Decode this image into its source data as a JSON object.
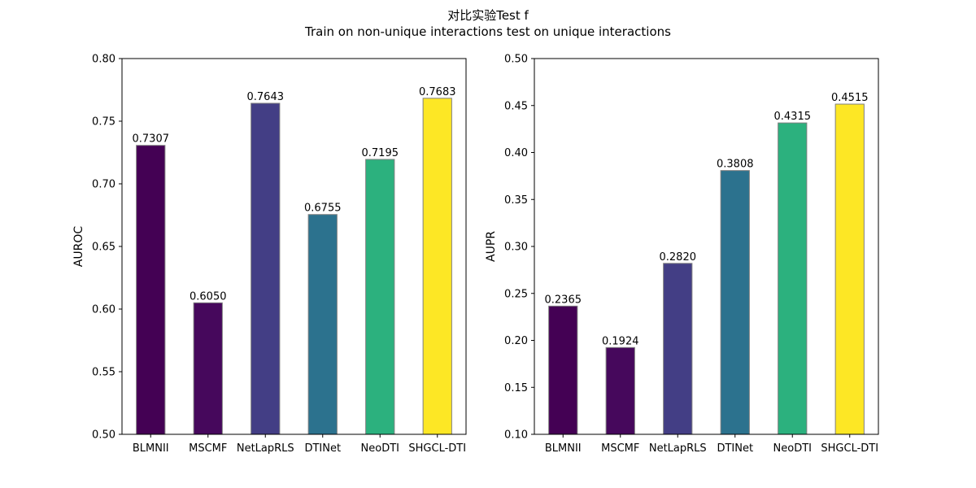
{
  "figure": {
    "title": "对比实验Test f",
    "subtitle": "Train on non-unique interactions test on unique interactions"
  },
  "colors": {
    "bars": [
      "#440154",
      "#46085c",
      "#433e85",
      "#2c728e",
      "#2cb17e",
      "#fde725"
    ],
    "bar_edge": "#808080",
    "axes": "#000000"
  },
  "chart_data": [
    {
      "type": "bar",
      "categories": [
        "BLMNII",
        "MSCMF",
        "NetLapRLS",
        "DTINet",
        "NeoDTI",
        "SHGCL-DTI"
      ],
      "values": [
        0.7307,
        0.605,
        0.7643,
        0.6755,
        0.7195,
        0.7683
      ],
      "value_labels": [
        "0.7307",
        "0.6050",
        "0.7643",
        "0.6755",
        "0.7195",
        "0.7683"
      ],
      "xlabel": "",
      "ylabel": "AUROC",
      "ylim": [
        0.5,
        0.8
      ],
      "yticks": [
        "0.50",
        "0.55",
        "0.60",
        "0.65",
        "0.70",
        "0.75",
        "0.80"
      ],
      "grid": false
    },
    {
      "type": "bar",
      "categories": [
        "BLMNII",
        "MSCMF",
        "NetLapRLS",
        "DTINet",
        "NeoDTI",
        "SHGCL-DTI"
      ],
      "values": [
        0.2365,
        0.1924,
        0.282,
        0.3808,
        0.4315,
        0.4515
      ],
      "value_labels": [
        "0.2365",
        "0.1924",
        "0.2820",
        "0.3808",
        "0.4315",
        "0.4515"
      ],
      "xlabel": "",
      "ylabel": "AUPR",
      "ylim": [
        0.1,
        0.5
      ],
      "yticks": [
        "0.10",
        "0.15",
        "0.20",
        "0.25",
        "0.30",
        "0.35",
        "0.40",
        "0.45",
        "0.50"
      ],
      "grid": false
    }
  ]
}
